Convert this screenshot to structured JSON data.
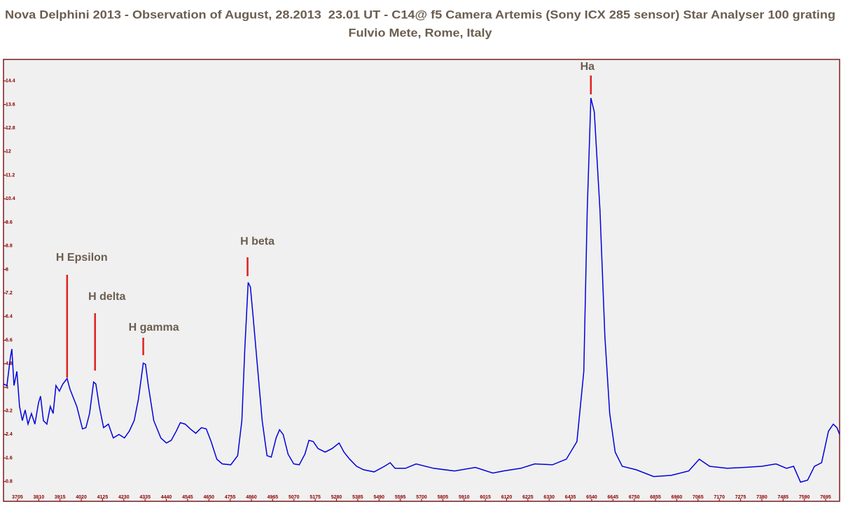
{
  "chart_data": {
    "type": "line",
    "title": "Nova Delphini 2013 - Observation of August, 28.2013  23.01 UT - C14@ f5 Camera Artemis (Sony ICX 285 sensor) Star Analyser 100 grating",
    "subtitle": "Fulvio Mete, Rome, Italy",
    "color": "#0000dd",
    "x": [
      3636,
      3653,
      3670,
      3677,
      3688,
      3702,
      3715,
      3729,
      3743,
      3757,
      3774,
      3791,
      3809,
      3819,
      3833,
      3850,
      3867,
      3881,
      3895,
      3912,
      3929,
      3950,
      3964,
      3998,
      4026,
      4043,
      4061,
      4081,
      4092,
      4109,
      4130,
      4154,
      4178,
      4206,
      4233,
      4257,
      4281,
      4302,
      4326,
      4337,
      4351,
      4378,
      4413,
      4440,
      4464,
      4489,
      4509,
      4533,
      4558,
      4585,
      4613,
      4637,
      4661,
      4689,
      4716,
      4758,
      4792,
      4813,
      4827,
      4844,
      4855,
      4868,
      4889,
      4913,
      4937,
      4958,
      4982,
      4999,
      5017,
      5041,
      5069,
      5096,
      5124,
      5144,
      5165,
      5189,
      5224,
      5258,
      5293,
      5317,
      5345,
      5379,
      5414,
      5466,
      5517,
      5545,
      5569,
      5621,
      5673,
      5759,
      5863,
      5966,
      6052,
      6104,
      6190,
      6259,
      6346,
      6415,
      6467,
      6501,
      6518,
      6536,
      6553,
      6581,
      6605,
      6629,
      6656,
      6691,
      6760,
      6846,
      6933,
      7019,
      7071,
      7122,
      7209,
      7295,
      7381,
      7450,
      7502,
      7537,
      7571,
      7606,
      7640,
      7675,
      7709,
      7733,
      7751,
      7764
    ],
    "values": [
      4.11,
      4.06,
      5.01,
      5.3,
      4.06,
      4.54,
      3.35,
      2.87,
      3.23,
      2.75,
      3.11,
      2.75,
      3.47,
      3.7,
      2.87,
      2.75,
      3.35,
      3.11,
      4.06,
      3.87,
      4.11,
      4.3,
      3.94,
      3.35,
      2.59,
      2.63,
      3.11,
      4.18,
      4.11,
      3.35,
      2.63,
      2.75,
      2.28,
      2.4,
      2.28,
      2.51,
      2.87,
      3.59,
      4.82,
      4.78,
      4.06,
      2.87,
      2.28,
      2.11,
      2.2,
      2.51,
      2.8,
      2.75,
      2.59,
      2.44,
      2.63,
      2.59,
      2.16,
      1.56,
      1.4,
      1.37,
      1.68,
      2.87,
      5.25,
      7.56,
      7.4,
      6.44,
      4.78,
      2.87,
      1.68,
      1.63,
      2.28,
      2.56,
      2.4,
      1.73,
      1.4,
      1.37,
      1.73,
      2.2,
      2.16,
      1.92,
      1.8,
      1.92,
      2.11,
      1.8,
      1.56,
      1.32,
      1.2,
      1.13,
      1.32,
      1.44,
      1.25,
      1.25,
      1.4,
      1.25,
      1.16,
      1.28,
      1.09,
      1.16,
      1.25,
      1.4,
      1.37,
      1.56,
      2.16,
      4.54,
      10.01,
      13.82,
      13.35,
      10.01,
      5.73,
      3.11,
      1.8,
      1.32,
      1.2,
      0.97,
      1.01,
      1.16,
      1.56,
      1.32,
      1.25,
      1.28,
      1.32,
      1.4,
      1.25,
      1.32,
      0.78,
      0.85,
      1.32,
      1.44,
      2.51,
      2.75,
      2.63,
      2.4
    ],
    "xlim": [
      3636,
      7764
    ],
    "ylim": [
      0.13,
      15.13
    ],
    "xticks": [
      3705,
      3810,
      3915,
      4020,
      4125,
      4230,
      4335,
      4440,
      4545,
      4650,
      4755,
      4860,
      4965,
      5070,
      5175,
      5280,
      5385,
      5490,
      5595,
      5700,
      5805,
      5910,
      6015,
      6120,
      6225,
      6330,
      6435,
      6540,
      6645,
      6750,
      6855,
      6960,
      7065,
      7170,
      7275,
      7380,
      7485,
      7590,
      7695
    ],
    "yticks": [
      0.8,
      1.6,
      2.4,
      3.2,
      4,
      4.8,
      5.6,
      6.4,
      7.2,
      8,
      8.8,
      9.6,
      10.4,
      11.2,
      12,
      12.8,
      13.6,
      14.4
    ],
    "annotations": [
      {
        "text": "H Epsilon",
        "x": 3950
      },
      {
        "text": "H delta",
        "x": 4088
      },
      {
        "text": "H gamma",
        "x": 4326
      },
      {
        "text": "H beta",
        "x": 4841
      },
      {
        "text": "Ha",
        "x": 6536
      }
    ]
  }
}
